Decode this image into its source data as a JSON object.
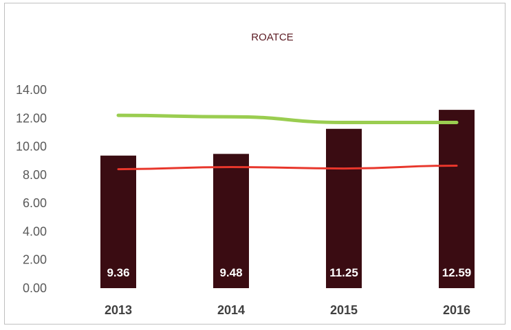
{
  "chart_data": {
    "type": "bar",
    "title": "ROATCE",
    "categories": [
      "2013",
      "2014",
      "2015",
      "2016"
    ],
    "values": [
      9.36,
      9.48,
      11.25,
      12.59
    ],
    "data_labels": [
      "9.36",
      "9.48",
      "11.25",
      "12.59"
    ],
    "lines": [
      {
        "values": [
          8.4,
          8.55,
          8.45,
          8.65
        ],
        "color": "#e8362b"
      },
      {
        "values": [
          12.2,
          12.1,
          11.7,
          11.7
        ],
        "color": "#9acd50"
      }
    ],
    "ylim": [
      0,
      14
    ],
    "yticks": [
      "0.00",
      "2.00",
      "4.00",
      "6.00",
      "8.00",
      "10.00",
      "12.00",
      "14.00"
    ],
    "grid": false,
    "bar_color": "#3a0c12"
  }
}
